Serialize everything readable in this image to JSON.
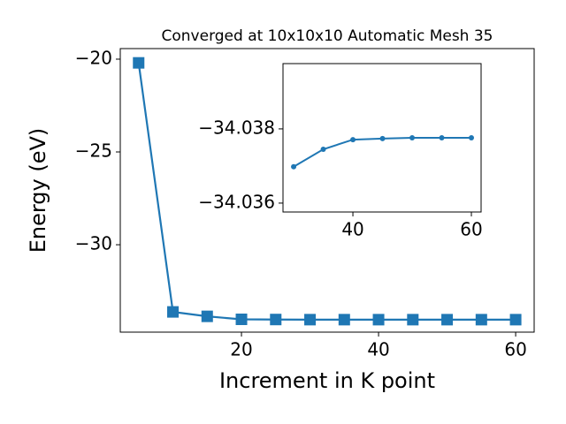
{
  "chart_data": [
    {
      "type": "line",
      "title": "Converged at 10x10x10 Automatic Mesh 35",
      "xlabel": "Increment in K point",
      "ylabel": "Energy (eV)",
      "x": [
        5,
        10,
        15,
        20,
        25,
        30,
        35,
        40,
        45,
        50,
        55,
        60
      ],
      "series": [
        {
          "color": "#1f77b4",
          "marker": "square",
          "values": [
            -20.2,
            -33.62,
            -33.86,
            -34.02,
            -34.03,
            -34.03698,
            -34.03745,
            -34.03771,
            -34.03774,
            -34.03776,
            -34.03776,
            -34.03776
          ]
        }
      ],
      "xlim": [
        2.32,
        62.7
      ],
      "ylim": [
        -34.71,
        -19.43
      ],
      "xticks": [
        20,
        40,
        60
      ],
      "yticks": [
        {
          "value": -20,
          "label": "−20"
        },
        {
          "value": -25,
          "label": "−25"
        },
        {
          "value": -30,
          "label": "−30"
        }
      ]
    },
    {
      "type": "line",
      "x": [
        30,
        35,
        40,
        45,
        50,
        55,
        60
      ],
      "series": [
        {
          "color": "#1f77b4",
          "marker": "circle",
          "values": [
            -34.03698,
            -34.03745,
            -34.03771,
            -34.03774,
            -34.03776,
            -34.03776,
            -34.03776
          ]
        }
      ],
      "xlim": [
        28.2,
        61.64
      ],
      "ylim": [
        -34.03576,
        -34.03976
      ],
      "xticks": [
        40,
        60
      ],
      "yticks": [
        {
          "value": -34.038,
          "label": "−34.038"
        },
        {
          "value": -34.036,
          "label": "−34.036"
        }
      ]
    }
  ]
}
